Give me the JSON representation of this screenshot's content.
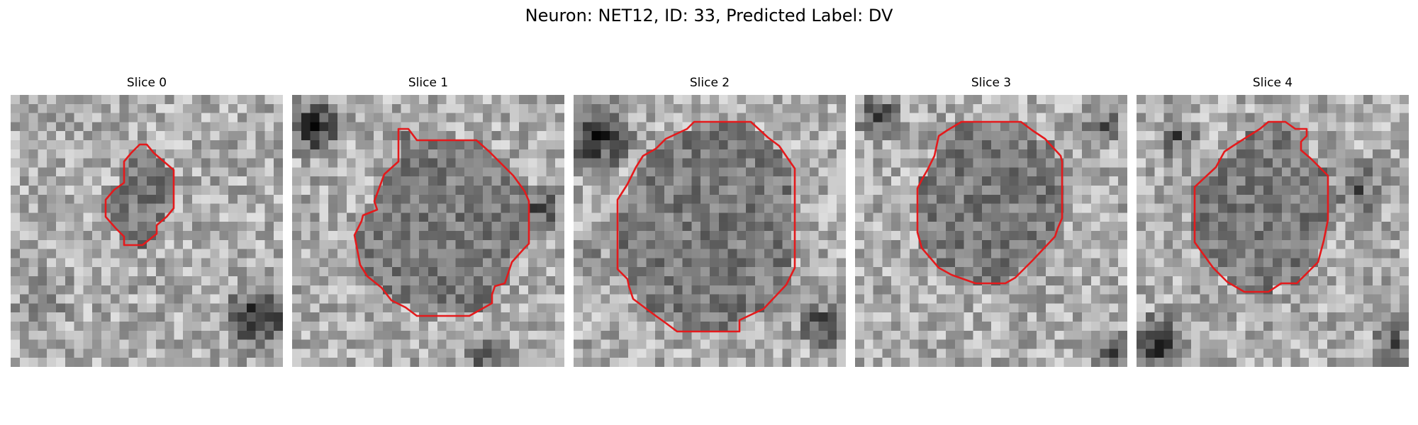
{
  "figure": {
    "title": "Neuron: NET12, ID: 33, Predicted Label: DV"
  },
  "contour_color": "#e41a1c",
  "colormap": "gray",
  "panels": [
    {
      "title": "Slice 0"
    },
    {
      "title": "Slice 1"
    },
    {
      "title": "Slice 2"
    },
    {
      "title": "Slice 3"
    },
    {
      "title": "Slice 4"
    }
  ]
}
